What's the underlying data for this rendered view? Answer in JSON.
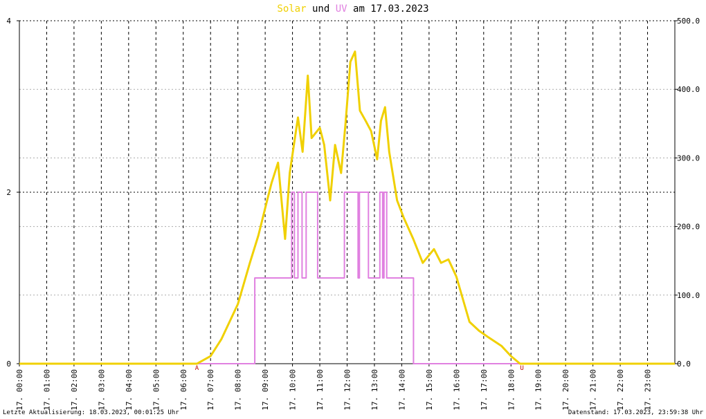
{
  "chart_data": {
    "type": "line",
    "title_parts": [
      "Solar",
      "und",
      "UV",
      "am 17.03.2023"
    ],
    "xlim": [
      0,
      24
    ],
    "xticks": [
      {
        "value": 0,
        "label": "17. 00:00"
      },
      {
        "value": 1,
        "label": "17. 01:00"
      },
      {
        "value": 2,
        "label": "17. 02:00"
      },
      {
        "value": 3,
        "label": "17. 03:00"
      },
      {
        "value": 4,
        "label": "17. 04:00"
      },
      {
        "value": 5,
        "label": "17. 05:00"
      },
      {
        "value": 6,
        "label": "17. 06:00"
      },
      {
        "value": 7,
        "label": "17. 07:00"
      },
      {
        "value": 8,
        "label": "17. 08:00"
      },
      {
        "value": 9,
        "label": "17. 09:00"
      },
      {
        "value": 10,
        "label": "17. 10:00"
      },
      {
        "value": 11,
        "label": "17. 11:00"
      },
      {
        "value": 12,
        "label": "17. 12:00"
      },
      {
        "value": 13,
        "label": "17. 13:00"
      },
      {
        "value": 14,
        "label": "17. 14:00"
      },
      {
        "value": 15,
        "label": "17. 15:00"
      },
      {
        "value": 16,
        "label": "17. 16:00"
      },
      {
        "value": 17,
        "label": "17. 17:00"
      },
      {
        "value": 18,
        "label": "17. 18:00"
      },
      {
        "value": 19,
        "label": "17. 19:00"
      },
      {
        "value": 20,
        "label": "17. 20:00"
      },
      {
        "value": 21,
        "label": "17. 21:00"
      },
      {
        "value": 22,
        "label": "17. 22:00"
      },
      {
        "value": 23,
        "label": "17. 23:00"
      }
    ],
    "ylim": [
      0,
      4
    ],
    "yticks": [
      0,
      2,
      4
    ],
    "y2lim": [
      0,
      500
    ],
    "y2ticks": [
      {
        "value": 0,
        "label": "0.0"
      },
      {
        "value": 100,
        "label": "100.0"
      },
      {
        "value": 200,
        "label": "200.0"
      },
      {
        "value": 300,
        "label": "300.0"
      },
      {
        "value": 400,
        "label": "400.0"
      },
      {
        "value": 500,
        "label": "500.0"
      }
    ],
    "grid": true,
    "series": [
      {
        "name": "Solar",
        "color": "#f0d000",
        "axis": "y2",
        "x": [
          0,
          6.5,
          7.0,
          7.4,
          8.0,
          8.44,
          8.75,
          9.07,
          9.23,
          9.47,
          9.73,
          9.9,
          10.2,
          10.37,
          10.56,
          10.7,
          11.0,
          11.16,
          11.38,
          11.56,
          11.78,
          11.94,
          12.12,
          12.29,
          12.47,
          12.68,
          12.88,
          13.1,
          13.24,
          13.39,
          13.54,
          13.83,
          14.07,
          14.42,
          14.77,
          15.18,
          15.44,
          15.71,
          16.0,
          16.48,
          16.83,
          17.19,
          17.65,
          18.0,
          18.33,
          24
        ],
        "values": [
          0,
          0,
          11,
          36,
          87,
          147,
          187,
          238,
          263,
          293,
          182,
          278,
          359,
          309,
          420,
          329,
          344,
          319,
          238,
          319,
          278,
          349,
          440,
          455,
          369,
          354,
          339,
          298,
          354,
          374,
          309,
          238,
          213,
          182,
          147,
          167,
          147,
          152,
          127,
          61,
          48,
          38,
          26,
          11,
          0,
          0
        ]
      },
      {
        "name": "UV",
        "color": "#e080e0",
        "x": [
          0,
          8.62,
          8.62,
          9.97,
          9.97,
          10.07,
          10.07,
          10.2,
          10.2,
          10.35,
          10.35,
          10.5,
          10.5,
          10.92,
          10.92,
          11.9,
          11.9,
          12.4,
          12.4,
          12.45,
          12.45,
          12.78,
          12.78,
          13.2,
          13.2,
          13.3,
          13.3,
          13.35,
          13.35,
          13.45,
          13.45,
          14.43,
          14.43,
          24
        ],
        "values": [
          0,
          0,
          1,
          1,
          2,
          2,
          1,
          1,
          2,
          2,
          1,
          1,
          2,
          2,
          1,
          1,
          2,
          2,
          1,
          1,
          2,
          2,
          1,
          1,
          2,
          2,
          1,
          1,
          2,
          2,
          1,
          1,
          0,
          0
        ]
      }
    ],
    "annotations": [
      {
        "text": "A",
        "x": 6.5
      },
      {
        "text": "U",
        "x": 18.4
      }
    ],
    "footer_left": "Letzte Aktualisierung: 18.03.2023, 00:01:25 Uhr",
    "footer_right": "Datenstand: 17.03.2023, 23:59:38 Uhr"
  }
}
